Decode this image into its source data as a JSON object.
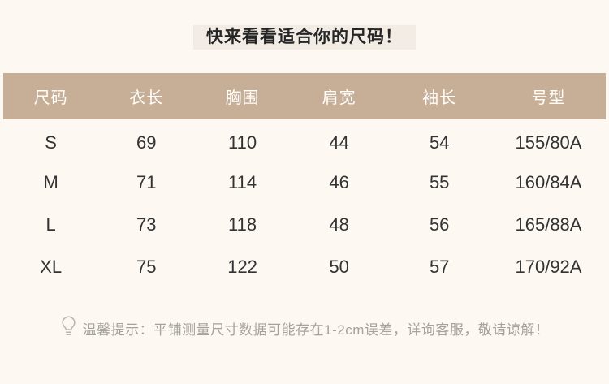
{
  "page_title": "快来看看适合你的尺码！",
  "chart_data": {
    "type": "table",
    "title": "快来看看适合你的尺码！",
    "columns": [
      "尺码",
      "衣长",
      "胸围",
      "肩宽",
      "袖长",
      "号型"
    ],
    "rows": [
      [
        "S",
        "69",
        "110",
        "44",
        "54",
        "155/80A"
      ],
      [
        "M",
        "71",
        "114",
        "46",
        "55",
        "160/84A"
      ],
      [
        "L",
        "73",
        "118",
        "48",
        "56",
        "165/88A"
      ],
      [
        "XL",
        "75",
        "122",
        "50",
        "57",
        "170/92A"
      ]
    ],
    "layout_hints": {
      "header_style": "white text on tan bar",
      "gridlines": "none",
      "column_width_percents": [
        15.8,
        15.9,
        16.0,
        16.1,
        17.2,
        19.0
      ]
    }
  },
  "note": {
    "icon": "lightbulb-icon",
    "text": "温馨提示：平铺测量尺寸数据可能存在1-2cm误差，详询客服，敬请谅解！"
  },
  "colors": {
    "background": "#fdf9f2",
    "title_highlight": "#f2ece4",
    "header_background": "#c7ae97",
    "header_text": "#fffefb",
    "body_text": "#333333",
    "note_text": "#a5a19b"
  }
}
